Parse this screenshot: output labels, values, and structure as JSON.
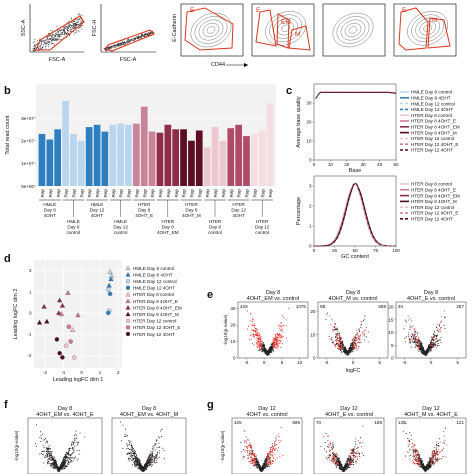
{
  "panels": {
    "b": "b",
    "c": "c",
    "d": "d",
    "e": "e",
    "f": "f",
    "g": "g"
  },
  "facs": {
    "x_labels": [
      "FSC-A",
      "FSC-A"
    ],
    "y_labels": [
      "SSC-A",
      "FSC-H",
      "E-Cadherin"
    ],
    "x_label3": "CD44",
    "gate_labels": [
      "E",
      "E",
      "EM",
      "M",
      "E",
      "M"
    ]
  },
  "chart_b": {
    "type": "bar",
    "ylabel": "Total read count",
    "yticks": [
      "0e+00",
      "1e+07",
      "2e+07",
      "3e+07"
    ],
    "ylim": [
      0,
      45000000.0
    ],
    "bar_label": "Rep",
    "groups": [
      {
        "label": [
          "HMLE",
          "Day 8",
          "4OHT"
        ],
        "color": "#2e7fbf",
        "values": [
          23000000.0,
          20500000.0,
          25000000.0
        ]
      },
      {
        "label": [
          "HMLE",
          "Day 8",
          "control"
        ],
        "color": "#b9d6ee",
        "values": [
          37500000.0,
          23000000.0,
          20000000.0
        ]
      },
      {
        "label": [
          "HMLE",
          "Day 12",
          "4OHT"
        ],
        "color": "#2e7fbf",
        "values": [
          26000000.0,
          27000000.0,
          24000000.0
        ]
      },
      {
        "label": [
          "HMLE",
          "Day 12",
          "control"
        ],
        "color": "#b9d6ee",
        "values": [
          27000000.0,
          27500000.0,
          27000000.0
        ]
      },
      {
        "label": [
          "HTER",
          "Day 8",
          "4OHT_E"
        ],
        "color": "#c9849a",
        "values": [
          27500000.0,
          35000000.0,
          24000000.0
        ]
      },
      {
        "label": [
          "HTER",
          "Day 8",
          "4OHT_EM"
        ],
        "color": "#8f2c4a",
        "values": [
          23500000.0,
          27000000.0,
          25000000.0
        ]
      },
      {
        "label": [
          "HTER",
          "Day 8",
          "4OHT_M"
        ],
        "color": "#5c0e22",
        "values": [
          25000000.0,
          20000000.0,
          24500000.0
        ]
      },
      {
        "label": [
          "HTER",
          "Day 8",
          "control"
        ],
        "color": "#ecc6d0",
        "values": [
          17000000.0,
          26000000.0,
          20000000.0
        ]
      },
      {
        "label": [
          "HTER",
          "Day 12",
          "4OHT"
        ],
        "color": "#b04a6a",
        "values": [
          25500000.0,
          27000000.0,
          22000000.0
        ]
      },
      {
        "label": [
          "HTER",
          "Day 12",
          "control"
        ],
        "color": "#f6dce3",
        "values": [
          23000000.0,
          24500000.0,
          36500000.0
        ]
      }
    ]
  },
  "legend_c": [
    {
      "label": "HMLE Day 8 control",
      "color": "#bcd6ea",
      "dash": "0"
    },
    {
      "label": "HMLE Day 8 4OHT",
      "color": "#2e7fbf",
      "dash": "0"
    },
    {
      "label": "HMLE Day 12 control",
      "color": "#bcd6ea",
      "dash": "3,2"
    },
    {
      "label": "HMLE Day 12 4OHT",
      "color": "#2e7fbf",
      "dash": "3,2"
    },
    {
      "label": "HTER Day 8 control",
      "color": "#ecc6d0",
      "dash": "0"
    },
    {
      "label": "HTER Day 8 4OHT_E",
      "color": "#d07b95",
      "dash": "0"
    },
    {
      "label": "HTER Day 8 4OHT_EM",
      "color": "#8f2c4a",
      "dash": "0"
    },
    {
      "label": "HTER Day 8 4OHT_M",
      "color": "#4d0a1c",
      "dash": "0"
    },
    {
      "label": "HTER Day 12 control",
      "color": "#ecc6d0",
      "dash": "3,2"
    },
    {
      "label": "HTER Day 12 4OHT_E",
      "color": "#d07b95",
      "dash": "3,2"
    },
    {
      "label": "HTER Day 12 4OHT",
      "color": "#4d0a1c",
      "dash": "3,2"
    }
  ],
  "chart_c1": {
    "type": "line",
    "xlabel": "Base",
    "ylabel": "Average base quality",
    "xticks": [
      "0",
      "10",
      "20",
      "30",
      "40",
      "50"
    ],
    "yticks": [
      "0",
      "10",
      "20",
      "30"
    ],
    "xlim": [
      0,
      50
    ],
    "ylim": [
      0,
      40
    ]
  },
  "chart_c2": {
    "type": "line",
    "xlabel": "GC content",
    "ylabel": "Percentage",
    "xticks": [
      "0",
      "25",
      "50",
      "75",
      "100"
    ],
    "yticks": [
      "0",
      "1",
      "2",
      "3"
    ],
    "xlim": [
      0,
      100
    ],
    "ylim": [
      0,
      3.5
    ]
  },
  "chart_d": {
    "type": "scatter",
    "xlabel": "Leading logFC dim 1",
    "ylabel": "Leading logFC dim 2",
    "xticks": [
      "-2",
      "-1",
      "0",
      "1",
      "2"
    ],
    "yticks": [
      "-2",
      "-1",
      "0",
      "1",
      "2"
    ],
    "xlim": [
      -2.6,
      2.2
    ],
    "ylim": [
      -2.6,
      2.5
    ],
    "legend": [
      {
        "label": "HMLE Day 8 control",
        "color": "#bcd6ea",
        "shape": "tri"
      },
      {
        "label": "HMLE Day 8 4OHT",
        "color": "#2e7fbf",
        "shape": "tri"
      },
      {
        "label": "HMLE Day 12 control",
        "color": "#bcd6ea",
        "shape": "circ"
      },
      {
        "label": "HMLE Day 12 4OHT",
        "color": "#2e7fbf",
        "shape": "circ"
      },
      {
        "label": "HTER Day 8 control",
        "color": "#ecc6d0",
        "shape": "tri"
      },
      {
        "label": "HTER Day 8 4OHT_E",
        "color": "#d07b95",
        "shape": "tri"
      },
      {
        "label": "HTER Day 8 4OHT_EM",
        "color": "#8f2c4a",
        "shape": "tri"
      },
      {
        "label": "HTER Day 8 4OHT_M",
        "color": "#4d0a1c",
        "shape": "tri"
      },
      {
        "label": "HTER Day 12 control",
        "color": "#ecc6d0",
        "shape": "circ"
      },
      {
        "label": "HTER Day 12 4OHT_E",
        "color": "#d07b95",
        "shape": "circ"
      },
      {
        "label": "HTER Day 12 4OHT",
        "color": "#4d0a1c",
        "shape": "circ"
      }
    ],
    "points": [
      {
        "x": 1.55,
        "y": 1.95,
        "c": "#bcd6ea",
        "s": "tri"
      },
      {
        "x": 1.62,
        "y": 1.75,
        "c": "#bcd6ea",
        "s": "tri"
      },
      {
        "x": 1.6,
        "y": 1.6,
        "c": "#2e7fbf",
        "s": "tri"
      },
      {
        "x": 1.5,
        "y": 1.3,
        "c": "#2e7fbf",
        "s": "tri"
      },
      {
        "x": 1.45,
        "y": 1.1,
        "c": "#bcd6ea",
        "s": "circ"
      },
      {
        "x": 1.55,
        "y": 0.9,
        "c": "#2e7fbf",
        "s": "circ"
      },
      {
        "x": 1.5,
        "y": 0.1,
        "c": "#bcd6ea",
        "s": "circ"
      },
      {
        "x": 1.45,
        "y": 0.0,
        "c": "#2e7fbf",
        "s": "circ"
      },
      {
        "x": -0.75,
        "y": 0.95,
        "c": "#d07b95",
        "s": "tri"
      },
      {
        "x": -1.2,
        "y": 0.6,
        "c": "#8f2c4a",
        "s": "tri"
      },
      {
        "x": -1.05,
        "y": 0.35,
        "c": "#8f2c4a",
        "s": "tri"
      },
      {
        "x": -2.05,
        "y": 0.3,
        "c": "#8f2c4a",
        "s": "tri"
      },
      {
        "x": -1.25,
        "y": 0.0,
        "c": "#8f2c4a",
        "s": "tri"
      },
      {
        "x": -1.1,
        "y": -0.05,
        "c": "#d07b95",
        "s": "tri"
      },
      {
        "x": -0.2,
        "y": -0.1,
        "c": "#d07b95",
        "s": "tri"
      },
      {
        "x": -2.3,
        "y": -0.45,
        "c": "#4d0a1c",
        "s": "tri"
      },
      {
        "x": -1.9,
        "y": -0.4,
        "c": "#4d0a1c",
        "s": "tri"
      },
      {
        "x": -0.7,
        "y": -0.65,
        "c": "#d07b95",
        "s": "circ"
      },
      {
        "x": -0.5,
        "y": -0.8,
        "c": "#ecc6d0",
        "s": "tri"
      },
      {
        "x": -0.6,
        "y": -1.35,
        "c": "#d07b95",
        "s": "circ"
      },
      {
        "x": -0.85,
        "y": -1.55,
        "c": "#ecc6d0",
        "s": "circ"
      },
      {
        "x": -1.35,
        "y": -1.25,
        "c": "#4d0a1c",
        "s": "circ"
      },
      {
        "x": -1.2,
        "y": -1.9,
        "c": "#4d0a1c",
        "s": "circ"
      },
      {
        "x": -1.05,
        "y": -2.1,
        "c": "#4d0a1c",
        "s": "circ"
      },
      {
        "x": -0.4,
        "y": -2.1,
        "c": "#ecc6d0",
        "s": "circ"
      }
    ]
  },
  "volcano_e": {
    "xlabel": "logFC",
    "ylabel": "-log10(p-value)",
    "xticks": [
      "-5",
      "0",
      "5",
      "10"
    ],
    "plots": [
      {
        "title": [
          "Day 8",
          "4OHT_EM vs. control"
        ],
        "left": "429",
        "right": "1076",
        "yticks": [
          "0",
          "10",
          "20",
          "30"
        ],
        "xticks": [
          "-5",
          "0",
          "5",
          "10"
        ],
        "red": 0.65
      },
      {
        "title": [
          "Day 8",
          "4OHT_M vs. control"
        ],
        "left": "95",
        "right": "588",
        "yticks": [
          "0",
          "10",
          "20"
        ],
        "xticks": [
          "-5",
          "0",
          "5"
        ],
        "red": 0.4
      },
      {
        "title": [
          "Day 8",
          "4OHT_E vs. control"
        ],
        "left": "24",
        "right": "267",
        "yticks": [
          "0",
          "5",
          "10",
          "15",
          "20"
        ],
        "xticks": [
          "-5",
          "0",
          "5"
        ],
        "red": 0.22
      }
    ]
  },
  "volcano_f": {
    "ylabel": "-log10(p-value)",
    "plots": [
      {
        "title": [
          "Day 8",
          "4OHT_EM vs. 4OHT_E"
        ],
        "left": "",
        "right": "",
        "yticks": [],
        "xticks": [],
        "red": 0.02
      },
      {
        "title": [
          "Day 8",
          "4OHT_EM vs. 4OHT_M"
        ],
        "left": "",
        "right": "",
        "yticks": [],
        "xticks": [],
        "red": 0.02
      }
    ]
  },
  "volcano_g": {
    "ylabel": "-log10(p-value)",
    "plots": [
      {
        "title": [
          "Day 12",
          "4OHT vs. control"
        ],
        "left": "425",
        "right": "595",
        "yticks": [],
        "xticks": [],
        "red": 0.5
      },
      {
        "title": [
          "Day 12",
          "4OHT_E vs. control"
        ],
        "left": "70",
        "right": "189",
        "yticks": [],
        "xticks": [],
        "red": 0.3
      },
      {
        "title": [
          "Day 12",
          "4OHT_M vs. 4OHT_E"
        ],
        "left": "138",
        "right": "121",
        "yticks": [],
        "xticks": [],
        "red": 0.35
      }
    ]
  }
}
